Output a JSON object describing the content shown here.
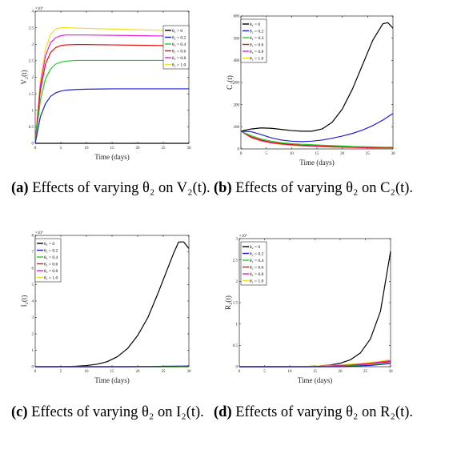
{
  "colors": {
    "s0": "#000000",
    "s02": "#1f1fd0",
    "s04": "#22cc22",
    "s06": "#e01010",
    "s08": "#e020e0",
    "s10": "#f0e020"
  },
  "legend_labels": [
    "θ₂ = 0",
    "θ₂ = 0.2",
    "θ₂ = 0.4",
    "θ₂ = 0.6",
    "θ₂ = 0.8",
    "θ₂ = 1.0"
  ],
  "captions": {
    "a": {
      "tag": "(a)",
      "text": "Effects of varying θ₂ on V₂(t)."
    },
    "b": {
      "tag": "(b)",
      "text": "Effects of varying θ₂ on C₂(t)."
    },
    "c": {
      "tag": "(c)",
      "text": "Effects of varying θ₂ on I₂(t)."
    },
    "d": {
      "tag": "(d)",
      "text": "Effects of varying θ₂ on R₂(t)."
    }
  },
  "chart_data": [
    {
      "id": "a",
      "type": "line",
      "xlabel": "Time (days)",
      "ylabel": "V₂(t)",
      "exponent": "×10⁴",
      "x": [
        0,
        1,
        2,
        3,
        4,
        5,
        6,
        8,
        10,
        15,
        20,
        25,
        30
      ],
      "xlim": [
        0,
        30
      ],
      "ylim": [
        0,
        4
      ],
      "xticks": [
        0,
        5,
        10,
        15,
        20,
        25,
        30
      ],
      "yticks": [
        0,
        0.5,
        1,
        1.5,
        2,
        2.5,
        3,
        3.5,
        4
      ],
      "series": [
        {
          "name": "θ₂ = 0",
          "values": [
            0,
            0,
            0,
            0,
            0,
            0,
            0,
            0,
            0,
            0,
            0,
            0,
            0
          ]
        },
        {
          "name": "θ₂ = 0.2",
          "values": [
            0,
            0.8,
            1.2,
            1.42,
            1.53,
            1.58,
            1.61,
            1.63,
            1.64,
            1.65,
            1.65,
            1.65,
            1.65
          ]
        },
        {
          "name": "θ₂ = 0.4",
          "values": [
            0,
            1.3,
            1.95,
            2.25,
            2.4,
            2.46,
            2.49,
            2.51,
            2.51,
            2.51,
            2.51,
            2.51,
            2.51
          ]
        },
        {
          "name": "θ₂ = 0.6",
          "values": [
            0,
            1.6,
            2.4,
            2.75,
            2.9,
            2.96,
            2.98,
            2.99,
            2.99,
            2.98,
            2.97,
            2.96,
            2.96
          ]
        },
        {
          "name": "θ₂ = 0.8",
          "values": [
            0,
            1.75,
            2.65,
            3.05,
            3.2,
            3.26,
            3.28,
            3.28,
            3.28,
            3.27,
            3.26,
            3.25,
            3.25
          ]
        },
        {
          "name": "θ₂ = 1.0",
          "values": [
            0,
            1.9,
            2.85,
            3.3,
            3.46,
            3.5,
            3.5,
            3.49,
            3.48,
            3.46,
            3.44,
            3.42,
            3.41
          ]
        }
      ]
    },
    {
      "id": "b",
      "type": "line",
      "xlabel": "Time (days)",
      "ylabel": "C₂(t)",
      "x": [
        0,
        2,
        4,
        6,
        8,
        10,
        12,
        14,
        16,
        18,
        20,
        22,
        24,
        26,
        28,
        29,
        30
      ],
      "xlim": [
        0,
        30
      ],
      "ylim": [
        0,
        600
      ],
      "xticks": [
        0,
        5,
        10,
        15,
        20,
        25,
        30
      ],
      "yticks": [
        0,
        100,
        200,
        300,
        400,
        500,
        600
      ],
      "series": [
        {
          "name": "θ₂ = 0",
          "values": [
            80,
            90,
            95,
            93,
            88,
            83,
            80,
            80,
            90,
            120,
            180,
            270,
            380,
            490,
            565,
            570,
            545
          ]
        },
        {
          "name": "θ₂ = 0.2",
          "values": [
            80,
            78,
            65,
            50,
            40,
            35,
            33,
            35,
            40,
            48,
            58,
            70,
            85,
            105,
            130,
            145,
            160
          ]
        },
        {
          "name": "θ₂ = 0.4",
          "values": [
            80,
            60,
            45,
            35,
            28,
            24,
            21,
            19,
            17,
            15,
            13,
            11,
            10,
            9,
            8,
            8,
            8
          ]
        },
        {
          "name": "θ₂ = 0.6",
          "values": [
            80,
            55,
            40,
            30,
            24,
            20,
            17,
            15,
            13,
            11,
            10,
            8,
            7,
            6,
            6,
            5,
            5
          ]
        },
        {
          "name": "θ₂ = 0.8",
          "values": [
            80,
            52,
            37,
            27,
            22,
            18,
            15,
            13,
            11,
            9,
            8,
            7,
            6,
            5,
            5,
            4,
            4
          ]
        },
        {
          "name": "θ₂ = 1.0",
          "values": [
            80,
            50,
            35,
            26,
            20,
            16,
            14,
            12,
            10,
            8,
            7,
            6,
            5,
            4,
            4,
            3,
            3
          ]
        }
      ]
    },
    {
      "id": "c",
      "type": "line",
      "xlabel": "Time (days)",
      "ylabel": "I₂(t)",
      "exponent": "×10⁴",
      "x": [
        0,
        2,
        4,
        6,
        8,
        10,
        12,
        14,
        16,
        18,
        20,
        22,
        24,
        26,
        27,
        28,
        29,
        30
      ],
      "xlim": [
        0,
        30
      ],
      "ylim": [
        0,
        8
      ],
      "xticks": [
        0,
        5,
        10,
        15,
        20,
        25,
        30
      ],
      "yticks": [
        0,
        1,
        2,
        3,
        4,
        5,
        6,
        7,
        8
      ],
      "series": [
        {
          "name": "θ₂ = 0",
          "values": [
            0,
            0,
            0,
            0.01,
            0.03,
            0.07,
            0.15,
            0.3,
            0.6,
            1.1,
            1.9,
            3.0,
            4.5,
            6.1,
            6.9,
            7.6,
            7.6,
            7.2
          ]
        },
        {
          "name": "θ₂ = 0.2",
          "values": [
            0,
            0,
            0,
            0,
            0,
            0,
            0,
            0,
            0,
            0,
            0.01,
            0.01,
            0.02,
            0.03,
            0.03,
            0.04,
            0.04,
            0.05
          ]
        },
        {
          "name": "θ₂ = 0.4",
          "values": [
            0,
            0,
            0,
            0,
            0,
            0,
            0,
            0,
            0,
            0,
            0,
            0,
            0,
            0,
            0,
            0,
            0,
            0
          ]
        },
        {
          "name": "θ₂ = 0.6",
          "values": [
            0,
            0,
            0,
            0,
            0,
            0,
            0,
            0,
            0,
            0,
            0,
            0,
            0,
            0,
            0,
            0,
            0,
            0
          ]
        },
        {
          "name": "θ₂ = 0.8",
          "values": [
            0,
            0,
            0,
            0,
            0,
            0,
            0,
            0,
            0,
            0,
            0,
            0,
            0,
            0,
            0,
            0,
            0,
            0
          ]
        },
        {
          "name": "θ₂ = 1.0",
          "values": [
            0,
            0,
            0,
            0,
            0,
            0,
            0,
            0,
            0,
            0,
            0,
            0,
            0,
            0,
            0,
            0,
            0,
            0
          ]
        }
      ]
    },
    {
      "id": "d",
      "type": "line",
      "xlabel": "Time (days)",
      "ylabel": "R₂(t)",
      "exponent": "×10⁵",
      "x": [
        0,
        4,
        8,
        12,
        14,
        16,
        18,
        20,
        22,
        24,
        26,
        28,
        30
      ],
      "xlim": [
        0,
        30
      ],
      "ylim": [
        0,
        3
      ],
      "xticks": [
        0,
        5,
        10,
        15,
        20,
        25,
        30
      ],
      "yticks": [
        0,
        0.5,
        1,
        1.5,
        2,
        2.5,
        3
      ],
      "series": [
        {
          "name": "θ₂ = 0",
          "values": [
            0,
            0,
            0,
            0.005,
            0.01,
            0.02,
            0.04,
            0.08,
            0.16,
            0.32,
            0.65,
            1.3,
            2.7
          ]
        },
        {
          "name": "θ₂ = 0.2",
          "values": [
            0,
            0,
            0,
            0,
            0,
            0,
            0,
            0,
            0.01,
            0.02,
            0.03,
            0.05,
            0.08
          ]
        },
        {
          "name": "θ₂ = 0.4",
          "values": [
            0,
            0,
            0,
            0,
            0,
            0,
            0.01,
            0.01,
            0.02,
            0.03,
            0.04,
            0.06,
            0.09
          ]
        },
        {
          "name": "θ₂ = 0.6",
          "values": [
            0,
            0,
            0,
            0,
            0,
            0.01,
            0.01,
            0.02,
            0.03,
            0.05,
            0.07,
            0.09,
            0.12
          ]
        },
        {
          "name": "θ₂ = 0.8",
          "values": [
            0,
            0,
            0,
            0,
            0,
            0.01,
            0.02,
            0.03,
            0.04,
            0.06,
            0.08,
            0.11,
            0.14
          ]
        },
        {
          "name": "θ₂ = 1.0",
          "values": [
            0,
            0,
            0,
            0.01,
            0.01,
            0.02,
            0.03,
            0.04,
            0.06,
            0.08,
            0.1,
            0.13,
            0.17
          ]
        }
      ]
    }
  ]
}
